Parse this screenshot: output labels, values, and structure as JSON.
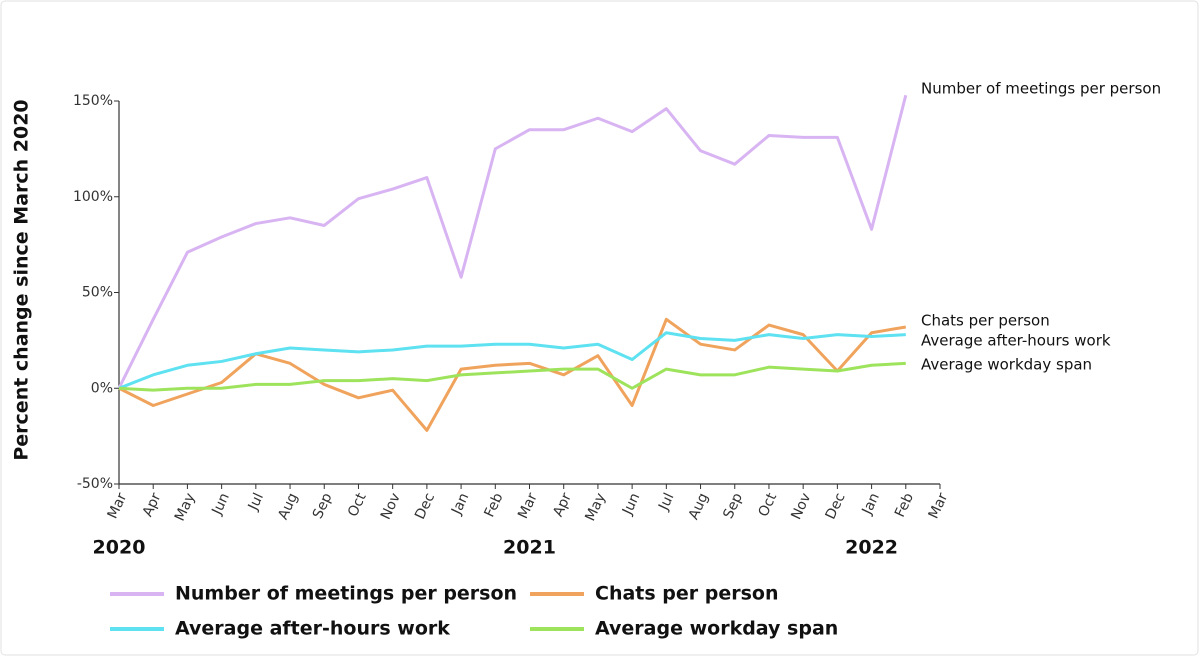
{
  "chart_data": {
    "type": "line",
    "y_label": "Percent change since March 2020",
    "categories": [
      "Mar",
      "Apr",
      "May",
      "Jun",
      "Jul",
      "Aug",
      "Sep",
      "Oct",
      "Nov",
      "Dec",
      "Jan",
      "Feb",
      "Mar",
      "Apr",
      "May",
      "Jun",
      "Jul",
      "Aug",
      "Sep",
      "Oct",
      "Nov",
      "Dec",
      "Jan",
      "Feb",
      "Mar"
    ],
    "year_labels": [
      "2020",
      "2021",
      "2022"
    ],
    "series": [
      {
        "name": "Number of meetings per person",
        "color": "#d8b4f2",
        "values": [
          0,
          36,
          71,
          79,
          86,
          89,
          85,
          99,
          104,
          110,
          58,
          125,
          135,
          135,
          141,
          134,
          146,
          124,
          117,
          132,
          131,
          131,
          83,
          153,
          null
        ]
      },
      {
        "name": "Chats per person",
        "color": "#f0a35c",
        "values": [
          0,
          -9,
          -3,
          3,
          18,
          13,
          2,
          -5,
          -1,
          -22,
          10,
          12,
          13,
          7,
          17,
          -9,
          36,
          23,
          20,
          33,
          28,
          9,
          29,
          32,
          null
        ]
      },
      {
        "name": "Average after-hours work",
        "color": "#5ee1f0",
        "values": [
          0,
          7,
          12,
          14,
          18,
          21,
          20,
          19,
          20,
          22,
          22,
          23,
          23,
          21,
          23,
          15,
          29,
          26,
          25,
          28,
          26,
          28,
          27,
          28,
          null
        ]
      },
      {
        "name": "Average workday span",
        "color": "#9ee35c",
        "values": [
          0,
          -1,
          0,
          0,
          2,
          2,
          4,
          4,
          5,
          4,
          7,
          8,
          9,
          10,
          10,
          0,
          10,
          7,
          7,
          11,
          10,
          9,
          12,
          13,
          null
        ]
      }
    ],
    "ylim": [
      -50,
      150
    ],
    "yticks": [
      {
        "value": -50,
        "label": "-50%"
      },
      {
        "value": 0,
        "label": "0%"
      },
      {
        "value": 50,
        "label": "50%"
      },
      {
        "value": 100,
        "label": "100%"
      },
      {
        "value": 150,
        "label": "150%"
      }
    ]
  }
}
